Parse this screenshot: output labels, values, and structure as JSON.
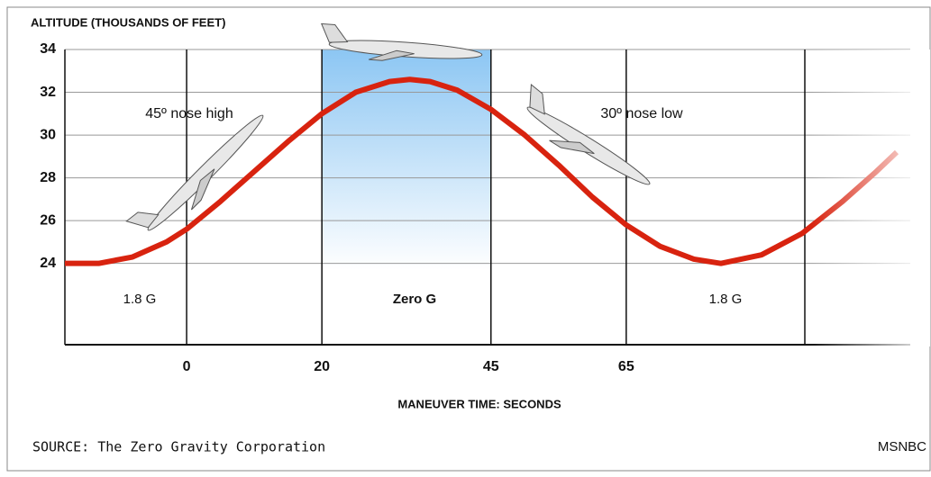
{
  "chart_data": {
    "type": "line",
    "title": "ALTITUDE (THOUSANDS OF FEET)",
    "x_label": "MANEUVER TIME: SECONDS",
    "source": "SOURCE: The Zero Gravity Corporation",
    "credit": "MSNBC",
    "xlim": [
      -18,
      107
    ],
    "xticks": [
      0,
      20,
      45,
      65
    ],
    "ylim": [
      20.2,
      34
    ],
    "yticks": [
      24,
      26,
      28,
      30,
      32,
      34
    ],
    "grid": true,
    "shade": {
      "x": [
        20,
        45
      ],
      "color": "#9fd0f5"
    },
    "phase_labels": [
      "1.8 G",
      "Zero G",
      "1.8 G"
    ],
    "annotations": [
      "45º nose high",
      "30º nose low"
    ],
    "series": [
      {
        "color": "#d8230f",
        "x": [
          -18,
          -13,
          -8,
          -3,
          0,
          5,
          10,
          15,
          20,
          25,
          30,
          33,
          36,
          40,
          45,
          50,
          55,
          60,
          65,
          70,
          75,
          79,
          85,
          91,
          97,
          102,
          105
        ],
        "values": [
          24.0,
          24.0,
          24.3,
          25.0,
          25.6,
          26.9,
          28.3,
          29.7,
          31.0,
          32.0,
          32.5,
          32.6,
          32.5,
          32.1,
          31.2,
          30.0,
          28.6,
          27.1,
          25.8,
          24.8,
          24.2,
          24.0,
          24.4,
          25.4,
          26.9,
          28.3,
          29.2
        ]
      }
    ]
  }
}
